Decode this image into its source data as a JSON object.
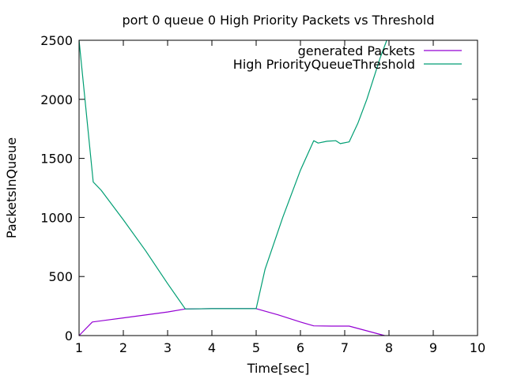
{
  "chart_data": {
    "type": "line",
    "title": "port 0 queue 0 High Priority Packets vs Threshold",
    "xlabel": "Time[sec]",
    "ylabel": "PacketsInQueue",
    "xlim": [
      1,
      10
    ],
    "ylim": [
      0,
      2500
    ],
    "xticks": [
      "1",
      "2",
      "3",
      "4",
      "5",
      "6",
      "7",
      "8",
      "9",
      "10"
    ],
    "yticks": [
      "0",
      "500",
      "1000",
      "1500",
      "2000",
      "2500"
    ],
    "grid": false,
    "legend": "top-right",
    "series": [
      {
        "name": "generated Packets",
        "color": "#9400d3",
        "x": [
          1.0,
          1.3,
          2.0,
          3.0,
          3.4,
          4.0,
          4.5,
          5.0,
          5.5,
          6.0,
          6.3,
          6.7,
          7.1,
          7.5,
          7.9
        ],
        "y": [
          0,
          115,
          150,
          200,
          225,
          228,
          228,
          228,
          175,
          115,
          82,
          80,
          80,
          40,
          0
        ]
      },
      {
        "name": "High PriorityQueueThreshold",
        "color": "#009e73",
        "x": [
          1.0,
          1.32,
          1.5,
          2.0,
          2.5,
          3.0,
          3.4,
          4.0,
          4.5,
          5.0,
          5.2,
          5.6,
          6.0,
          6.3,
          6.4,
          6.6,
          6.8,
          6.9,
          7.1,
          7.3,
          7.5,
          7.8,
          7.95
        ],
        "y": [
          2500,
          1300,
          1230,
          980,
          720,
          440,
          225,
          228,
          228,
          228,
          560,
          1000,
          1400,
          1650,
          1630,
          1645,
          1650,
          1625,
          1640,
          1800,
          2000,
          2350,
          2500
        ]
      }
    ]
  }
}
